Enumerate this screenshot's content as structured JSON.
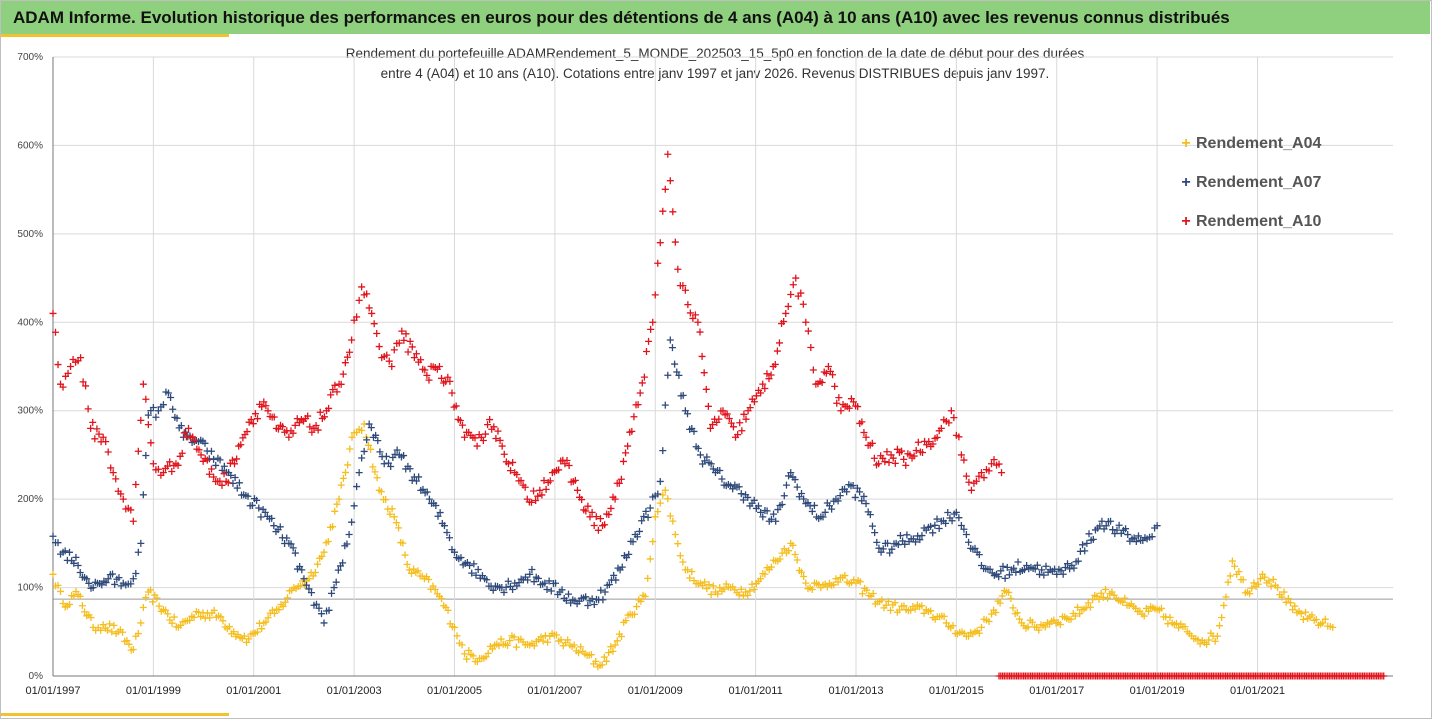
{
  "header": {
    "title": "ADAM Informe. Evolution historique des performances en euros pour des détentions de 4 ans (A04) à 10 ans (A10) avec les revenus connus distribués"
  },
  "colors": {
    "banner": "#8fd07f",
    "accent": "#f2c32e",
    "a04": "#f5be1e",
    "a07": "#2f4a7a",
    "a10": "#e0141c",
    "grid": "#d9d9d9"
  },
  "chart_data": {
    "type": "scatter",
    "subtitle_line1": "Rendement du portefeuille ADAMRendement_5_MONDE_202503_15_5p0 en fonction de la date de début pour des durées",
    "subtitle_line2": "entre 4 (A04) et 10 ans (A10). Cotations entre janv 1997 et janv 2026. Revenus DISTRIBUES depuis janv 1997.",
    "xlabel": "",
    "ylabel": "",
    "xlim": [
      1997.0,
      2023.7
    ],
    "ylim": [
      0,
      700
    ],
    "y_ticks": [
      "0%",
      "100%",
      "200%",
      "300%",
      "400%",
      "500%",
      "600%",
      "700%"
    ],
    "y_tick_values": [
      0,
      100,
      200,
      300,
      400,
      500,
      600,
      700
    ],
    "x_ticks": [
      "01/01/1997",
      "01/01/1999",
      "01/01/2001",
      "01/01/2003",
      "01/01/2005",
      "01/01/2007",
      "01/01/2009",
      "01/01/2011",
      "01/01/2013",
      "01/01/2015",
      "01/01/2017",
      "01/01/2019",
      "01/01/2021"
    ],
    "x_tick_values": [
      1997,
      1999,
      2001,
      2003,
      2005,
      2007,
      2009,
      2011,
      2013,
      2015,
      2017,
      2019,
      2021
    ],
    "legend": {
      "position": "top-right",
      "items": [
        "Rendement_A04",
        "Rendement_A07",
        "Rendement_A10"
      ]
    },
    "series": [
      {
        "name": "Rendement_A04",
        "color": "#f5be1e",
        "x": [
          1997.0,
          1997.2,
          1997.5,
          1997.8,
          1998.0,
          1998.3,
          1998.6,
          1998.75,
          1998.9,
          1999.2,
          1999.5,
          1999.9,
          2000.3,
          2000.6,
          2000.9,
          2001.2,
          2001.5,
          2001.8,
          2002.1,
          2002.4,
          2002.7,
          2003.0,
          2003.2,
          2003.5,
          2003.8,
          2004.1,
          2004.4,
          2004.7,
          2005.0,
          2005.2,
          2005.5,
          2005.8,
          2006.1,
          2006.5,
          2006.9,
          2007.3,
          2007.6,
          2007.9,
          2008.2,
          2008.5,
          2008.8,
          2009.0,
          2009.2,
          2009.4,
          2009.6,
          2009.9,
          2010.2,
          2010.5,
          2010.8,
          2011.1,
          2011.4,
          2011.7,
          2012.0,
          2012.3,
          2012.6,
          2013.0,
          2013.3,
          2013.6,
          2014.0,
          2014.4,
          2014.8,
          2015.2,
          2015.5,
          2015.7,
          2016.0,
          2016.3,
          2016.6,
          2016.9,
          2017.2,
          2017.5,
          2017.8,
          2018.1,
          2018.4,
          2018.7,
          2019.0,
          2019.3,
          2019.6,
          2019.9,
          2020.2,
          2020.5,
          2020.8,
          2021.1,
          2021.4,
          2021.7,
          2022.0,
          2022.3,
          2022.5
        ],
        "values": [
          115,
          82,
          92,
          55,
          58,
          50,
          30,
          60,
          95,
          75,
          55,
          72,
          68,
          50,
          42,
          60,
          75,
          100,
          110,
          140,
          200,
          275,
          285,
          210,
          180,
          120,
          110,
          90,
          55,
          25,
          20,
          35,
          40,
          35,
          45,
          35,
          25,
          12,
          35,
          70,
          90,
          180,
          210,
          160,
          120,
          105,
          95,
          100,
          95,
          110,
          130,
          150,
          105,
          100,
          110,
          105,
          90,
          80,
          75,
          75,
          60,
          45,
          55,
          70,
          95,
          60,
          55,
          62,
          65,
          75,
          90,
          95,
          80,
          70,
          75,
          60,
          50,
          40,
          45,
          130,
          95,
          115,
          100,
          75,
          65,
          60,
          55
        ]
      },
      {
        "name": "Rendement_A07",
        "color": "#2f4a7a",
        "x": [
          1997.0,
          1997.2,
          1997.5,
          1997.8,
          1998.1,
          1998.4,
          1998.6,
          1998.75,
          1998.9,
          1999.1,
          1999.3,
          1999.6,
          1999.9,
          2000.2,
          2000.5,
          2000.8,
          2001.1,
          2001.4,
          2001.7,
          2002.0,
          2002.2,
          2002.4,
          2002.6,
          2002.9,
          2003.1,
          2003.3,
          2003.6,
          2003.9,
          2004.2,
          2004.5,
          2004.8,
          2005.0,
          2005.3,
          2005.6,
          2005.9,
          2006.2,
          2006.5,
          2006.8,
          2007.1,
          2007.4,
          2007.7,
          2008.0,
          2008.3,
          2008.6,
          2008.9,
          2009.1,
          2009.3,
          2009.6,
          2009.9,
          2010.2,
          2010.5,
          2010.8,
          2011.1,
          2011.4,
          2011.7,
          2012.0,
          2012.3,
          2012.6,
          2012.9,
          2013.2,
          2013.5,
          2013.8,
          2014.1,
          2014.4,
          2014.7,
          2015.0,
          2015.2,
          2015.5,
          2015.8,
          2016.1,
          2016.4,
          2016.7,
          2017.0,
          2017.3,
          2017.6,
          2017.9,
          2018.2,
          2018.5,
          2018.8,
          2019.0
        ],
        "values": [
          158,
          140,
          125,
          100,
          110,
          105,
          110,
          150,
          295,
          300,
          320,
          270,
          265,
          245,
          230,
          205,
          190,
          170,
          150,
          110,
          80,
          60,
          100,
          160,
          230,
          285,
          240,
          250,
          225,
          200,
          170,
          140,
          125,
          110,
          100,
          105,
          115,
          105,
          95,
          85,
          85,
          95,
          120,
          160,
          190,
          220,
          380,
          300,
          250,
          230,
          215,
          205,
          185,
          175,
          230,
          195,
          180,
          200,
          215,
          195,
          140,
          150,
          155,
          165,
          175,
          185,
          160,
          125,
          115,
          120,
          125,
          120,
          115,
          125,
          150,
          175,
          165,
          155,
          155,
          170
        ]
      },
      {
        "name": "Rendement_A10",
        "color": "#e0141c",
        "x": [
          1997.0,
          1997.15,
          1997.35,
          1997.55,
          1997.75,
          1998.0,
          1998.2,
          1998.4,
          1998.6,
          1998.8,
          1999.0,
          1999.2,
          1999.45,
          1999.7,
          1999.95,
          2000.2,
          2000.45,
          2000.7,
          2000.95,
          2001.2,
          2001.45,
          2001.7,
          2001.95,
          2002.2,
          2002.45,
          2002.7,
          2002.95,
          2003.15,
          2003.35,
          2003.55,
          2003.75,
          2003.95,
          2004.2,
          2004.45,
          2004.7,
          2004.95,
          2005.2,
          2005.45,
          2005.7,
          2005.95,
          2006.2,
          2006.45,
          2006.7,
          2006.95,
          2007.2,
          2007.45,
          2007.7,
          2007.95,
          2008.2,
          2008.45,
          2008.7,
          2008.95,
          2009.1,
          2009.25,
          2009.45,
          2009.65,
          2009.85,
          2010.1,
          2010.35,
          2010.6,
          2010.85,
          2011.1,
          2011.35,
          2011.6,
          2011.8,
          2012.0,
          2012.2,
          2012.45,
          2012.7,
          2012.95,
          2013.2,
          2013.45,
          2013.7,
          2013.95,
          2014.2,
          2014.45,
          2014.7,
          2014.9,
          2015.1,
          2015.3,
          2015.5,
          2015.7,
          2015.9
        ],
        "values": [
          410,
          330,
          350,
          360,
          280,
          270,
          230,
          200,
          175,
          330,
          240,
          230,
          240,
          280,
          250,
          225,
          220,
          260,
          290,
          310,
          280,
          270,
          290,
          280,
          300,
          330,
          380,
          440,
          410,
          360,
          350,
          390,
          360,
          340,
          350,
          320,
          270,
          260,
          290,
          260,
          230,
          200,
          210,
          230,
          240,
          210,
          180,
          170,
          200,
          260,
          320,
          400,
          490,
          590,
          460,
          420,
          400,
          280,
          300,
          270,
          300,
          320,
          350,
          410,
          450,
          400,
          330,
          350,
          300,
          310,
          270,
          240,
          250,
          245,
          255,
          265,
          280,
          300,
          250,
          210,
          230,
          240,
          230
        ]
      },
      {
        "name": "Rendement_A10 (0%)",
        "color": "#e0141c",
        "x": [
          2015.85,
          2023.55
        ],
        "values": [
          0,
          0
        ],
        "note": "dense row of markers at 0%"
      }
    ]
  }
}
